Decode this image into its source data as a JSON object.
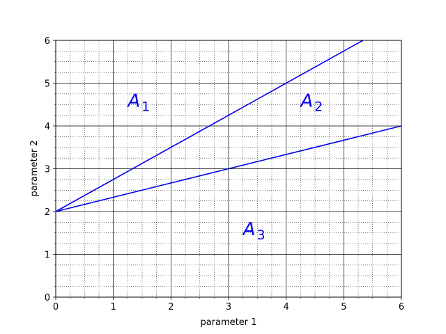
{
  "chart_data": {
    "type": "line",
    "title": "",
    "xlabel": "parameter 1",
    "ylabel": "parameter 2",
    "xlim": [
      0,
      6
    ],
    "ylim": [
      0,
      6
    ],
    "xticks": [
      "0",
      "1",
      "2",
      "3",
      "4",
      "5",
      "6"
    ],
    "yticks": [
      "0",
      "1",
      "2",
      "3",
      "4",
      "5",
      "6"
    ],
    "grid": {
      "major": true,
      "minor": true,
      "minor_per_major": 4
    },
    "series": [
      {
        "x": [
          0,
          5.333
        ],
        "y": [
          2,
          6
        ],
        "color": "#0000ee"
      },
      {
        "x": [
          0,
          6
        ],
        "y": [
          2,
          4
        ],
        "color": "#0000ee"
      }
    ],
    "annotations": [
      {
        "base": "A",
        "sub": "1",
        "x": 1.25,
        "y": 4.45,
        "color": "#0000ee"
      },
      {
        "base": "A",
        "sub": "2",
        "x": 4.25,
        "y": 4.45,
        "color": "#0000ee"
      },
      {
        "base": "A",
        "sub": "3",
        "x": 3.25,
        "y": 1.45,
        "color": "#0000ee"
      }
    ]
  }
}
